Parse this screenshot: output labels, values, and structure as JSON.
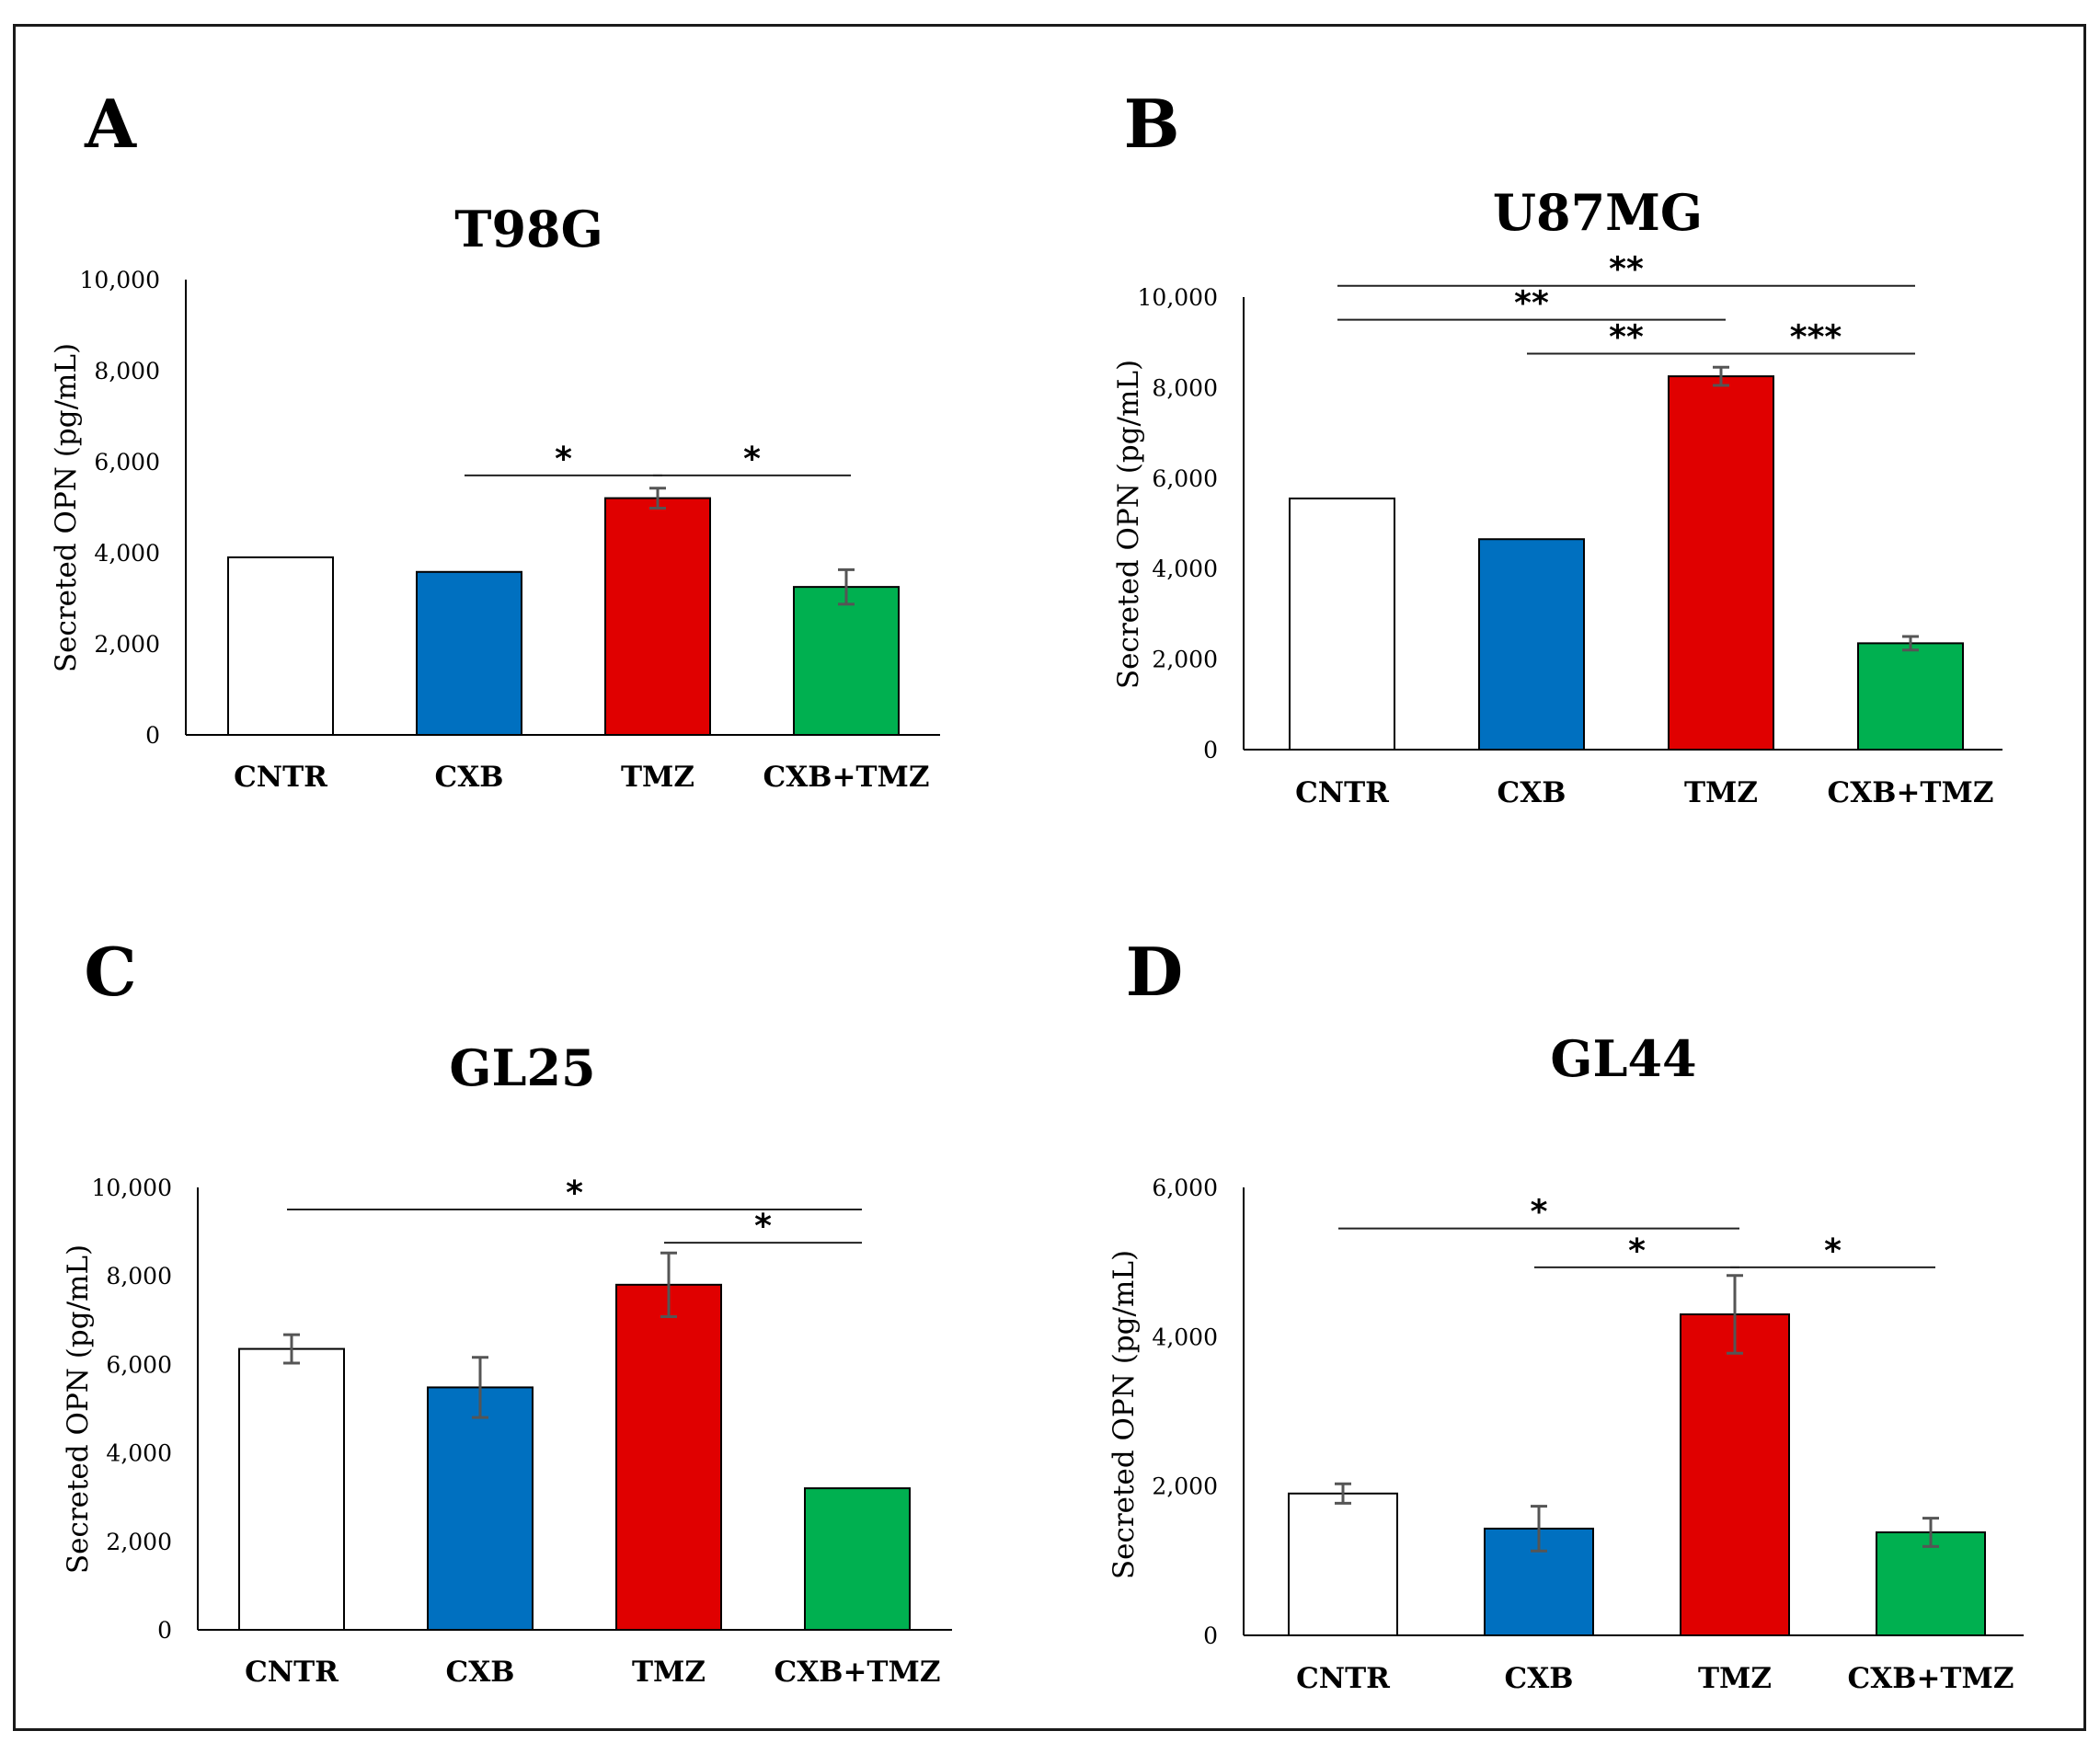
{
  "chart_data": [
    {
      "type": "bar",
      "panel": "A",
      "title": "T98G",
      "ylabel": "Secreted OPN (pg/mL)",
      "ylim": [
        0,
        10000
      ],
      "yticks": [
        0,
        2000,
        4000,
        6000,
        8000,
        10000
      ],
      "ytick_labels": [
        "0",
        "2,000",
        "4,000",
        "6,000",
        "8,000",
        "10,000"
      ],
      "categories": [
        "CNTR",
        "CXB",
        "TMZ",
        "CXB+TMZ"
      ],
      "values": [
        3900,
        3580,
        5200,
        3250
      ],
      "errors": [
        0,
        0,
        220,
        380
      ],
      "colors": [
        "#ffffff",
        "#0070c0",
        "#e00000",
        "#00b050"
      ],
      "significance": [
        {
          "from": 1,
          "to": 2,
          "label": "*",
          "level": 5700
        },
        {
          "from": 2,
          "to": 3,
          "label": "*",
          "level": 5700
        }
      ]
    },
    {
      "type": "bar",
      "panel": "B",
      "title": "U87MG",
      "ylabel": "Secreted OPN (pg/mL)",
      "ylim": [
        0,
        10000
      ],
      "yticks": [
        0,
        2000,
        4000,
        6000,
        8000,
        10000
      ],
      "ytick_labels": [
        "0",
        "2,000",
        "4,000",
        "6,000",
        "8,000",
        "10,000"
      ],
      "categories": [
        "CNTR",
        "CXB",
        "TMZ",
        "CXB+TMZ"
      ],
      "values": [
        5550,
        4650,
        8250,
        2350
      ],
      "errors": [
        0,
        0,
        200,
        150
      ],
      "colors": [
        "#ffffff",
        "#0070c0",
        "#e00000",
        "#00b050"
      ],
      "significance": [
        {
          "from": 0,
          "to": 3,
          "label": "**",
          "level": 10250
        },
        {
          "from": 0,
          "to": 2,
          "label": "**",
          "level": 9500
        },
        {
          "from": 1,
          "to": 2,
          "label": "**",
          "level": 8750
        },
        {
          "from": 2,
          "to": 3,
          "label": "***",
          "level": 8750
        }
      ]
    },
    {
      "type": "bar",
      "panel": "C",
      "title": "GL25",
      "ylabel": "Secreted OPN (pg/mL)",
      "ylim": [
        0,
        10000
      ],
      "yticks": [
        0,
        2000,
        4000,
        6000,
        8000,
        10000
      ],
      "ytick_labels": [
        "0",
        "2,000",
        "4,000",
        "6,000",
        "8,000",
        "10,000"
      ],
      "categories": [
        "CNTR",
        "CXB",
        "TMZ",
        "CXB+TMZ"
      ],
      "values": [
        6350,
        5480,
        7800,
        3200
      ],
      "errors": [
        320,
        680,
        720,
        0
      ],
      "colors": [
        "#ffffff",
        "#0070c0",
        "#e00000",
        "#00b050"
      ],
      "significance": [
        {
          "from": 0,
          "to": 3,
          "label": "*",
          "level": 9500
        },
        {
          "from": 2,
          "to": 3,
          "label": "*",
          "level": 8750
        }
      ]
    },
    {
      "type": "bar",
      "panel": "D",
      "title": "GL44",
      "ylabel": "Secreted OPN (pg/mL)",
      "ylim": [
        0,
        6000
      ],
      "yticks": [
        0,
        2000,
        4000,
        6000
      ],
      "ytick_labels": [
        "0",
        "2,000",
        "4,000",
        "6,000"
      ],
      "categories": [
        "CNTR",
        "CXB",
        "TMZ",
        "CXB+TMZ"
      ],
      "values": [
        1900,
        1430,
        4300,
        1380
      ],
      "errors": [
        130,
        300,
        520,
        190
      ],
      "colors": [
        "#ffffff",
        "#0070c0",
        "#e00000",
        "#00b050"
      ],
      "significance": [
        {
          "from": 0,
          "to": 2,
          "label": "*",
          "level": 5450
        },
        {
          "from": 1,
          "to": 2,
          "label": "*",
          "level": 4930
        },
        {
          "from": 2,
          "to": 3,
          "label": "*",
          "level": 4930
        }
      ]
    }
  ]
}
